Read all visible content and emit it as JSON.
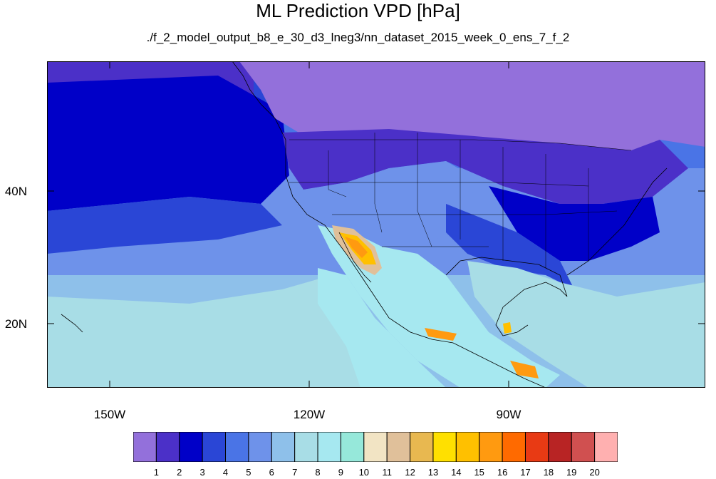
{
  "title": "ML Prediction VPD [hPa]",
  "subtitle": "./f_2_model_output_b8_e_30_d3_lneg3/nn_dataset_2015_week_0_ens_7_f_2",
  "lon_ticks": [
    "150W",
    "120W",
    "90W"
  ],
  "lat_ticks": [
    "40N",
    "20N"
  ],
  "colorbar": {
    "colors": [
      "#9370db",
      "#4b30c8",
      "#0000c8",
      "#2a46d6",
      "#4a74e6",
      "#6e92ea",
      "#8ec0ea",
      "#a8dde6",
      "#a6e8f0",
      "#96e8da",
      "#f2e4c4",
      "#e0c09a",
      "#e8b850",
      "#ffe000",
      "#ffc000",
      "#ff9a10",
      "#ff6a00",
      "#e83a14",
      "#b82424",
      "#d05050",
      "#ffb0b0"
    ],
    "labels": [
      "1",
      "2",
      "3",
      "4",
      "5",
      "6",
      "7",
      "8",
      "9",
      "10",
      "11",
      "12",
      "13",
      "14",
      "15",
      "16",
      "17",
      "18",
      "19",
      "20"
    ]
  }
}
